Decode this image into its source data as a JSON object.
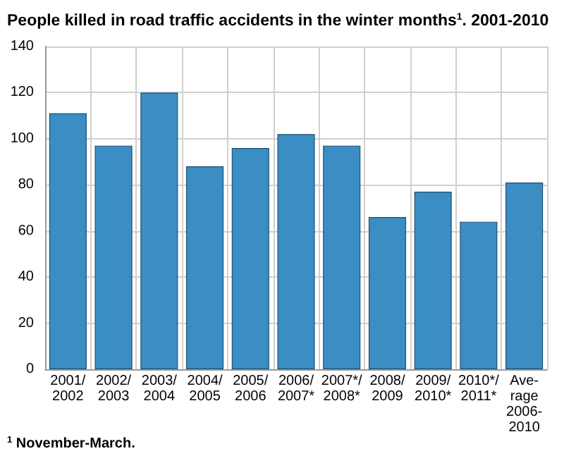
{
  "chart_data": {
    "type": "bar",
    "title": "People killed in road traffic accidents in the winter months$^{1}$. 2001-2010",
    "categories": [
      "2001/\n2002",
      "2002/\n2003",
      "2003/\n2004",
      "2004/\n2005",
      "2005/\n2006",
      "2006/\n2007*",
      "2007*/\n2008*",
      "2008/\n2009",
      "2009/\n2010*",
      "2010*/\n2011*",
      "Ave-\nrage\n2006-\n2010"
    ],
    "values": [
      111,
      97,
      120,
      88,
      96,
      102,
      97,
      66,
      77,
      64,
      81
    ],
    "color": "#3a8ec4",
    "ylim": [
      0,
      140
    ],
    "yticks": [
      0,
      20,
      40,
      60,
      80,
      100,
      120,
      140
    ],
    "grid": true,
    "annotations": [
      "$^{1}$ November-March."
    ]
  }
}
